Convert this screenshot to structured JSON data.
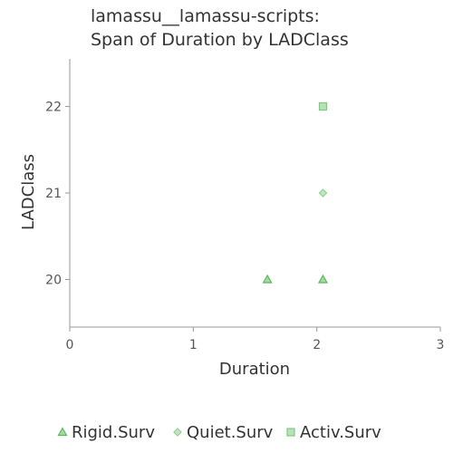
{
  "chart_data": {
    "type": "scatter",
    "title_line1": "lamassu__lamassu-scripts:",
    "title_line2": "Span of Duration by LADClass",
    "xlabel": "Duration",
    "ylabel": "LADClass",
    "xlim": [
      0,
      3
    ],
    "ylim": [
      19.45,
      22.55
    ],
    "x_ticks": [
      "0",
      "1",
      "2",
      "3"
    ],
    "y_ticks": [
      "20",
      "21",
      "22"
    ],
    "grid": false,
    "legend_position": "bottom",
    "series": [
      {
        "name": "Rigid.Surv",
        "marker": "triangle",
        "color": "#5cb85c",
        "points": [
          {
            "x": 1.6,
            "y": 20
          },
          {
            "x": 2.05,
            "y": 20
          }
        ]
      },
      {
        "name": "Quiet.Surv",
        "marker": "diamond",
        "color": "#8fd18f",
        "points": [
          {
            "x": 2.05,
            "y": 21
          }
        ]
      },
      {
        "name": "Activ.Surv",
        "marker": "square",
        "color": "#7fc97f",
        "points": [
          {
            "x": 2.05,
            "y": 22
          }
        ]
      }
    ]
  }
}
